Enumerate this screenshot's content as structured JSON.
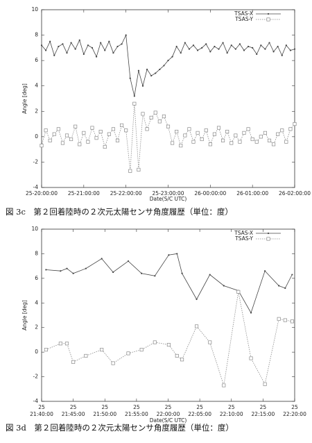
{
  "chart_data": [
    {
      "type": "line",
      "caption": "図 3c　第２回着陸時の２次元太陽センサ角度履歴（単位：度）",
      "xlabel": "Date(S/C UTC)",
      "ylabel": "Angle [deg]",
      "legend": "upper right",
      "xlim": [
        20,
        26
      ],
      "ylim": [
        -4,
        10
      ],
      "xticks": [
        {
          "value": 20,
          "label": "25-20:00:00"
        },
        {
          "value": 21,
          "label": "25-21:00:00"
        },
        {
          "value": 22,
          "label": "25-22:00:00"
        },
        {
          "value": 23,
          "label": "25-23:00:00"
        },
        {
          "value": 24,
          "label": "26-00:00:00"
        },
        {
          "value": 25,
          "label": "26-01:00:00"
        },
        {
          "value": 26,
          "label": "26-02:00:00"
        }
      ],
      "yticks": [
        -4,
        -2,
        0,
        2,
        4,
        6,
        8,
        10
      ],
      "x": [
        20.0,
        20.1,
        20.2,
        20.3,
        20.4,
        20.5,
        20.6,
        20.7,
        20.8,
        20.9,
        21.0,
        21.1,
        21.2,
        21.3,
        21.4,
        21.5,
        21.6,
        21.7,
        21.8,
        21.9,
        22.0,
        22.1,
        22.2,
        22.3,
        22.4,
        22.5,
        22.6,
        22.7,
        22.8,
        22.9,
        23.0,
        23.1,
        23.2,
        23.3,
        23.4,
        23.5,
        23.6,
        23.7,
        23.8,
        23.9,
        24.0,
        24.1,
        24.2,
        24.3,
        24.4,
        24.5,
        24.6,
        24.7,
        24.8,
        24.9,
        25.0,
        25.1,
        25.2,
        25.3,
        25.4,
        25.5,
        25.6,
        25.7,
        25.8,
        25.9,
        26.0
      ],
      "series": [
        {
          "name": "TSAS-X",
          "color": "#444444",
          "marker": "dot",
          "dash": "none",
          "values": [
            7.2,
            6.8,
            7.5,
            6.4,
            7.1,
            7.3,
            6.6,
            7.4,
            6.9,
            7.6,
            6.5,
            7.2,
            7.0,
            6.3,
            7.4,
            6.8,
            7.5,
            6.6,
            7.1,
            7.3,
            8.0,
            4.6,
            3.2,
            5.2,
            4.0,
            5.3,
            4.8,
            5.0,
            5.3,
            5.6,
            6.0,
            6.3,
            7.1,
            6.6,
            7.4,
            6.9,
            7.2,
            6.8,
            7.0,
            7.3,
            6.7,
            7.1,
            6.9,
            7.4,
            6.6,
            7.2,
            6.9,
            7.3,
            6.8,
            7.1,
            7.0,
            6.5,
            7.2,
            6.9,
            7.4,
            6.7,
            7.1,
            6.4,
            7.2,
            6.8,
            6.9
          ]
        },
        {
          "name": "TSAS-Y",
          "color": "#888888",
          "marker": "square",
          "dash": "1.5,1.5",
          "values": [
            -0.7,
            0.5,
            -0.3,
            0.2,
            0.6,
            -0.5,
            0.1,
            -0.2,
            0.8,
            -0.6,
            0.3,
            -0.4,
            0.7,
            -0.1,
            0.4,
            -0.8,
            0.2,
            0.6,
            -0.3,
            0.9,
            0.5,
            -2.7,
            2.6,
            -2.6,
            1.8,
            0.6,
            1.5,
            1.9,
            1.2,
            1.6,
            0.8,
            -0.5,
            0.4,
            -0.7,
            0.1,
            0.6,
            -0.4,
            0.3,
            -0.2,
            0.5,
            -0.6,
            0.2,
            0.7,
            -0.3,
            0.4,
            -0.5,
            0.1,
            -0.4,
            0.3,
            0.6,
            -0.2,
            -0.4,
            0.0,
            0.3,
            -0.3,
            -0.6,
            0.2,
            0.5,
            -0.4,
            0.6,
            1.0
          ]
        }
      ]
    },
    {
      "type": "line",
      "caption": "図 3d　第２回着陸時の２次元太陽センサ角度履歴（単位：度）",
      "xlabel": "Date(S/C UTC)",
      "ylabel": "Angle [deg]",
      "legend": "upper right",
      "xlim": [
        1300,
        1340
      ],
      "ylim": [
        -4,
        10
      ],
      "xticks": [
        {
          "value": 1300,
          "label": "25 21:40:00"
        },
        {
          "value": 1305,
          "label": "25 21:45:00"
        },
        {
          "value": 1310,
          "label": "25 21:50:00"
        },
        {
          "value": 1315,
          "label": "25 21:55:00"
        },
        {
          "value": 1320,
          "label": "25 22:00:00"
        },
        {
          "value": 1325,
          "label": "25 22:05:00"
        },
        {
          "value": 1330,
          "label": "25 22:10:00"
        },
        {
          "value": 1335,
          "label": "25 22:15:00"
        },
        {
          "value": 1340,
          "label": "25 22:20:00"
        }
      ],
      "yticks": [
        -4,
        -2,
        0,
        2,
        4,
        6,
        8,
        10
      ],
      "x": [
        1300.7,
        1303,
        1304,
        1305,
        1307,
        1309.5,
        1311.3,
        1313.7,
        1315.8,
        1317.9,
        1320.1,
        1321.4,
        1322.2,
        1324.5,
        1326.6,
        1328.8,
        1331.1,
        1333.1,
        1335.3,
        1337.5,
        1338.5,
        1339.6
      ],
      "series": [
        {
          "name": "TSAS-X",
          "color": "#444444",
          "marker": "dot",
          "dash": "none",
          "values": [
            6.7,
            6.6,
            6.8,
            6.4,
            6.8,
            7.6,
            6.5,
            7.4,
            6.4,
            6.2,
            7.9,
            8.0,
            6.4,
            4.3,
            6.3,
            5.4,
            5.0,
            3.2,
            6.6,
            5.4,
            5.2,
            6.3
          ]
        },
        {
          "name": "TSAS-Y",
          "color": "#888888",
          "marker": "square",
          "dash": "1.5,1.5",
          "values": [
            0.2,
            0.7,
            0.7,
            -0.8,
            -0.3,
            0.2,
            -0.9,
            -0.1,
            0.2,
            0.8,
            0.6,
            -0.3,
            -0.6,
            2.1,
            0.8,
            -2.7,
            4.9,
            -0.5,
            -2.6,
            2.7,
            2.6,
            2.5
          ]
        }
      ]
    }
  ]
}
